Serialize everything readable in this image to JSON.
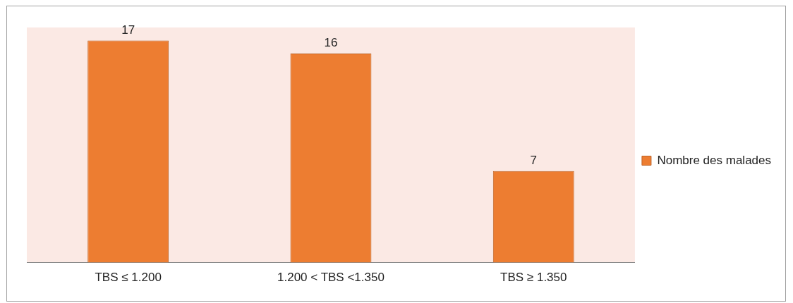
{
  "chart_data": {
    "type": "bar",
    "categories": [
      "TBS ≤ 1.200",
      "1.200 < TBS <1.350",
      "TBS ≥ 1.350"
    ],
    "series": [
      {
        "name": "Nombre des malades",
        "color": "#ed7d31",
        "values": [
          17,
          16,
          7
        ]
      }
    ],
    "data_labels": true,
    "legend": "right"
  }
}
